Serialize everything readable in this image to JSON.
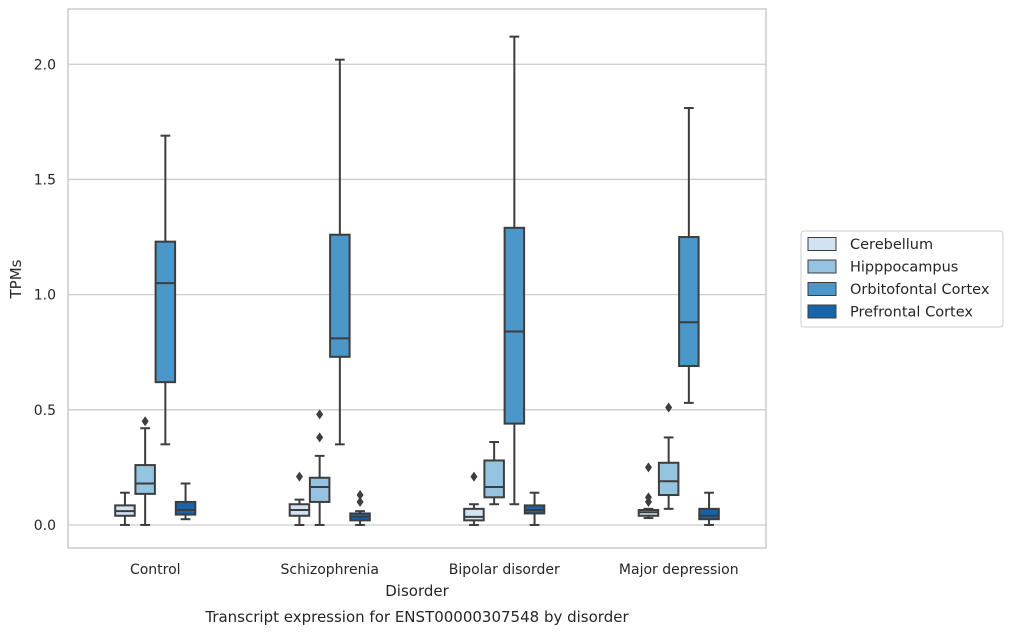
{
  "chart_data": {
    "type": "box",
    "caption": "Transcript expression for ENST00000307548 by disorder",
    "xlabel": "Disorder",
    "ylabel": "TPMs",
    "ylim": [
      -0.1,
      2.24
    ],
    "yticks": [
      0.0,
      0.5,
      1.0,
      1.5,
      2.0
    ],
    "ytick_labels": [
      "0.0",
      "0.5",
      "1.0",
      "1.5",
      "2.0"
    ],
    "grid": "horizontal",
    "legend_position": "right",
    "categories": [
      "Control",
      "Schizophrenia",
      "Bipolar disorder",
      "Major depression"
    ],
    "series": [
      {
        "name": "Cerebellum",
        "color": "#d1e2f2",
        "boxes": [
          {
            "whisker_low": 0.0,
            "q1": 0.04,
            "median": 0.06,
            "q3": 0.085,
            "whisker_high": 0.14,
            "outliers": []
          },
          {
            "whisker_low": 0.0,
            "q1": 0.04,
            "median": 0.065,
            "q3": 0.09,
            "whisker_high": 0.11,
            "outliers": [
              0.21
            ]
          },
          {
            "whisker_low": 0.0,
            "q1": 0.02,
            "median": 0.035,
            "q3": 0.07,
            "whisker_high": 0.09,
            "outliers": [
              0.21
            ]
          },
          {
            "whisker_low": 0.03,
            "q1": 0.04,
            "median": 0.055,
            "q3": 0.065,
            "whisker_high": 0.07,
            "outliers": [
              0.1,
              0.12,
              0.25
            ]
          }
        ]
      },
      {
        "name": "Hipppocampus",
        "color": "#94c4df",
        "boxes": [
          {
            "whisker_low": 0.0,
            "q1": 0.135,
            "median": 0.18,
            "q3": 0.26,
            "whisker_high": 0.42,
            "outliers": [
              0.45
            ]
          },
          {
            "whisker_low": 0.0,
            "q1": 0.1,
            "median": 0.165,
            "q3": 0.205,
            "whisker_high": 0.3,
            "outliers": [
              0.38,
              0.48
            ]
          },
          {
            "whisker_low": 0.09,
            "q1": 0.12,
            "median": 0.165,
            "q3": 0.28,
            "whisker_high": 0.36,
            "outliers": []
          },
          {
            "whisker_low": 0.07,
            "q1": 0.13,
            "median": 0.19,
            "q3": 0.27,
            "whisker_high": 0.38,
            "outliers": [
              0.51
            ]
          }
        ]
      },
      {
        "name": "Orbitofontal Cortex",
        "color": "#4b97c9",
        "boxes": [
          {
            "whisker_low": 0.35,
            "q1": 0.62,
            "median": 1.05,
            "q3": 1.23,
            "whisker_high": 1.69,
            "outliers": []
          },
          {
            "whisker_low": 0.35,
            "q1": 0.73,
            "median": 0.81,
            "q3": 1.26,
            "whisker_high": 2.02,
            "outliers": []
          },
          {
            "whisker_low": 0.09,
            "q1": 0.44,
            "median": 0.84,
            "q3": 1.29,
            "whisker_high": 2.12,
            "outliers": []
          },
          {
            "whisker_low": 0.53,
            "q1": 0.69,
            "median": 0.88,
            "q3": 1.25,
            "whisker_high": 1.81,
            "outliers": []
          }
        ]
      },
      {
        "name": "Prefrontal Cortex",
        "color": "#1764ab",
        "boxes": [
          {
            "whisker_low": 0.025,
            "q1": 0.045,
            "median": 0.065,
            "q3": 0.1,
            "whisker_high": 0.18,
            "outliers": []
          },
          {
            "whisker_low": 0.0,
            "q1": 0.02,
            "median": 0.035,
            "q3": 0.05,
            "whisker_high": 0.06,
            "outliers": [
              0.1,
              0.13
            ]
          },
          {
            "whisker_low": 0.0,
            "q1": 0.05,
            "median": 0.065,
            "q3": 0.085,
            "whisker_high": 0.14,
            "outliers": []
          },
          {
            "whisker_low": 0.0,
            "q1": 0.025,
            "median": 0.04,
            "q3": 0.07,
            "whisker_high": 0.14,
            "outliers": []
          }
        ]
      }
    ]
  }
}
